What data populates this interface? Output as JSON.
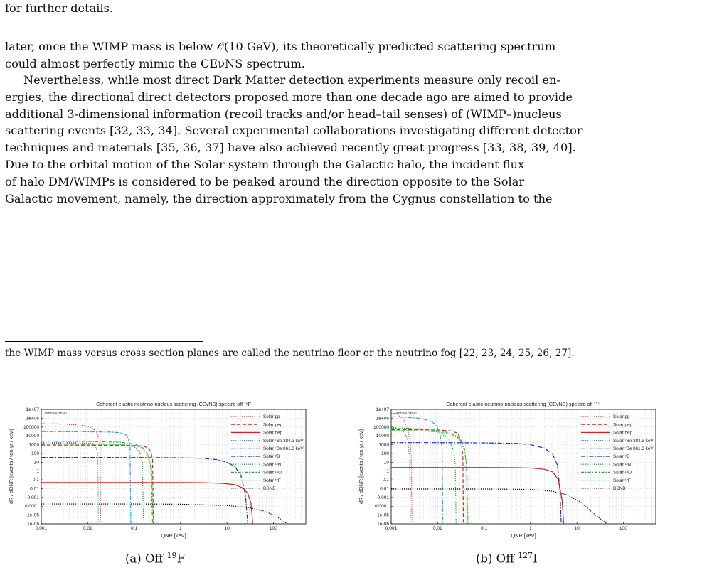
{
  "text": {
    "top_fragment": "for further details.",
    "para1": [
      "later, once the WIMP mass is below 𝒪(10 GeV), its theoretically predicted scattering spectrum",
      "could almost perfectly mimic the CEνNS spectrum."
    ],
    "para2": [
      "Nevertheless, while most direct Dark Matter detection experiments measure only recoil en-",
      "ergies, the directional direct detectors proposed more than one decade ago are aimed to provide",
      "additional 3-dimensional information (recoil tracks and/or head–tail senses) of (WIMP–)nucleus",
      "scattering events [32, 33, 34]. Several experimental collaborations investigating different detector",
      "techniques and materials [35, 36, 37] have also achieved recently great progress [33, 38, 39, 40].",
      "Due to the orbital motion of the Solar system through the Galactic halo, the incident flux",
      "of halo DM/WIMPs is considered to be peaked around the direction opposite to the Solar",
      "Galactic movement, namely, the direction approximately from the Cygnus constellation to the"
    ],
    "footnote": "the WIMP mass versus cross section planes are called the neutrino floor or the neutrino fog [22, 23, 24, 25, 26, 27]."
  },
  "captions": {
    "a_prefix": "(a) Off ",
    "a_sup": "19",
    "a_el": "F",
    "b_prefix": "(b) Off ",
    "b_sup": "127",
    "b_el": "I"
  },
  "legend": [
    {
      "name": "Solar pp",
      "color": "#e8322b",
      "dash": "1.2 1.8"
    },
    {
      "name": "Solar pep",
      "color": "#d81e1e",
      "dash": "5 3"
    },
    {
      "name": "Solar hep",
      "color": "#e01a1a",
      "dash": ""
    },
    {
      "name": "Solar ⁷Be 384.3 keV",
      "color": "#3a8fe0",
      "dash": "1.2 1.8"
    },
    {
      "name": "Solar ⁷Be 861.3 keV",
      "color": "#2ea6e6",
      "dash": "6 2 1.5 2"
    },
    {
      "name": "Solar ⁸B",
      "color": "#1030c8",
      "dash": "6 2 1.5 2"
    },
    {
      "name": "Solar ¹³N",
      "color": "#1a9a2a",
      "dash": "1.2 1.8"
    },
    {
      "name": "Solar ¹⁵O",
      "color": "#2aa83a",
      "dash": "4 2 1.5 2"
    },
    {
      "name": "Solar ¹⁷F",
      "color": "#4cd64c",
      "dash": "5 2 1.5 2 1.5 2"
    },
    {
      "name": "DSNB",
      "color": "#000000",
      "dash": "1.2 1.8"
    }
  ],
  "chart_data": [
    {
      "type": "line",
      "title": "Coherent elastic neutrino-nucleus scattering (CEvNS) spectra off ¹⁹F",
      "tag": "AMIDAS-2D-III",
      "xlabel": "QNR [keV]",
      "ylabel": "dR / dQNR [events / ton-yr / keV]",
      "xscale": "log",
      "yscale": "log",
      "xlim": [
        0.001,
        500
      ],
      "ylim": [
        1e-06,
        10000000.0
      ],
      "xticks": [
        "0.001",
        "0.01",
        "0.1",
        "1",
        "10",
        "100"
      ],
      "yticks": [
        "1e-06",
        "1e-05",
        "0.0001",
        "0.001",
        "0.01",
        "0.1",
        "1",
        "10",
        "100",
        "1000",
        "10000",
        "100000",
        "1e+06",
        "1e+07"
      ],
      "grid": true,
      "legend_position": "top-right",
      "series": [
        {
          "name": "Solar pp",
          "x": [
            0.001,
            0.002,
            0.004,
            0.007,
            0.01,
            0.013,
            0.016,
            0.0185,
            0.019,
            0.0192
          ],
          "y": [
            250000,
            230000,
            200000,
            160000,
            120000,
            70000,
            20000,
            1000,
            1e-06,
            1e-06
          ]
        },
        {
          "name": "Solar pep",
          "x": [
            0.001,
            0.01,
            0.05,
            0.1,
            0.15,
            0.2,
            0.23,
            0.25,
            0.26
          ],
          "y": [
            900,
            880,
            850,
            800,
            700,
            450,
            150,
            20,
            1e-06
          ]
        },
        {
          "name": "Solar hep",
          "x": [
            0.001,
            0.01,
            0.1,
            1,
            3,
            8,
            15,
            22,
            28,
            33,
            36
          ],
          "y": [
            0.05,
            0.05,
            0.05,
            0.05,
            0.047,
            0.04,
            0.028,
            0.012,
            0.003,
            0.0002,
            1e-06
          ]
        },
        {
          "name": "Solar ⁷Be 384.3 keV",
          "x": [
            0.001,
            0.005,
            0.01,
            0.013,
            0.015,
            0.0165,
            0.017
          ],
          "y": [
            1800,
            1700,
            1500,
            1000,
            500,
            100,
            1e-06
          ]
        },
        {
          "name": "Solar ⁷Be 861.3 keV",
          "x": [
            0.001,
            0.01,
            0.03,
            0.05,
            0.065,
            0.075,
            0.082,
            0.085
          ],
          "y": [
            30000,
            29000,
            27000,
            23000,
            15000,
            5000,
            500,
            1e-06
          ]
        },
        {
          "name": "Solar ⁸B",
          "x": [
            0.001,
            0.01,
            0.1,
            1,
            3,
            6,
            10,
            15,
            20,
            25,
            28
          ],
          "y": [
            35,
            35,
            34,
            32,
            28,
            20,
            10,
            3,
            0.3,
            0.002,
            1e-06
          ]
        },
        {
          "name": "Solar ¹³N",
          "x": [
            0.001,
            0.01,
            0.05,
            0.1,
            0.13,
            0.15,
            0.16
          ],
          "y": [
            1500,
            1400,
            1100,
            600,
            150,
            10,
            1e-06
          ]
        },
        {
          "name": "Solar ¹⁵O",
          "x": [
            0.001,
            0.01,
            0.05,
            0.1,
            0.15,
            0.2,
            0.23,
            0.25
          ],
          "y": [
            2500,
            2300,
            1900,
            1200,
            500,
            60,
            2,
            1e-06
          ]
        },
        {
          "name": "Solar ¹⁷F",
          "x": [
            0.001,
            0.01,
            0.05,
            0.1,
            0.15,
            0.2,
            0.24,
            0.26
          ],
          "y": [
            1200,
            1150,
            1000,
            800,
            400,
            60,
            2,
            1e-06
          ]
        },
        {
          "name": "DSNB",
          "x": [
            0.001,
            0.01,
            0.1,
            1,
            10,
            30,
            60,
            100,
            150,
            200
          ],
          "y": [
            0.00018,
            0.00018,
            0.00018,
            0.00017,
            0.00012,
            7e-05,
            3e-05,
            1e-05,
            3e-06,
            1e-06
          ]
        }
      ]
    },
    {
      "type": "line",
      "title": "Coherent elastic neutrino-nucleus scattering (CEvNS) spectra off ¹²⁷I",
      "tag": "AMIDAS-2D-III",
      "xlabel": "QNR [keV]",
      "ylabel": "dR / dQNR [events / ton-yr / keV]",
      "xscale": "log",
      "yscale": "log",
      "xlim": [
        0.001,
        500
      ],
      "ylim": [
        1e-06,
        10000000.0
      ],
      "xticks": [
        "0.001",
        "0.01",
        "0.1",
        "1",
        "10",
        "100"
      ],
      "yticks": [
        "1e-06",
        "1e-05",
        "0.0001",
        "0.001",
        "0.01",
        "0.1",
        "1",
        "10",
        "100",
        "1000",
        "10000",
        "100000",
        "1e+06",
        "1e+07"
      ],
      "grid": true,
      "legend_position": "top-right",
      "series": [
        {
          "name": "Solar pp",
          "x": [
            0.001,
            0.0013,
            0.0016,
            0.0019,
            0.0022,
            0.0025,
            0.0027,
            0.0028
          ],
          "y": [
            4000000,
            3000000,
            1500000,
            500000,
            100000,
            5000,
            50,
            1e-06
          ]
        },
        {
          "name": "Solar pep",
          "x": [
            0.001,
            0.005,
            0.01,
            0.02,
            0.027,
            0.032,
            0.035,
            0.036
          ],
          "y": [
            50000,
            48000,
            45000,
            35000,
            20000,
            3000,
            50,
            1e-06
          ]
        },
        {
          "name": "Solar hep",
          "x": [
            0.001,
            0.01,
            0.1,
            0.5,
            1,
            2,
            3,
            4,
            4.8,
            5.2
          ],
          "y": [
            2.5,
            2.5,
            2.5,
            2.4,
            2.2,
            1.6,
            0.8,
            0.1,
            0.0005,
            1e-06
          ]
        },
        {
          "name": "Solar ⁷Be 384.3 keV",
          "x": [
            0.001,
            0.0015,
            0.002,
            0.0023,
            0.0025,
            0.0026
          ],
          "y": [
            80000,
            60000,
            20000,
            2000,
            20,
            1e-06
          ]
        },
        {
          "name": "Solar ⁷Be 861.3 keV",
          "x": [
            0.001,
            0.002,
            0.004,
            0.007,
            0.009,
            0.011,
            0.0125,
            0.013
          ],
          "y": [
            1500000,
            1300000,
            1000000,
            500000,
            200000,
            30000,
            500,
            1e-06
          ]
        },
        {
          "name": "Solar ⁸B",
          "x": [
            0.001,
            0.01,
            0.1,
            0.5,
            1,
            2,
            3,
            3.8,
            4.3,
            4.6
          ],
          "y": [
            1700,
            1700,
            1600,
            1400,
            1000,
            400,
            80,
            5,
            0.01,
            1e-06
          ]
        },
        {
          "name": "Solar ¹³N",
          "x": [
            0.001,
            0.005,
            0.01,
            0.017,
            0.022,
            0.024,
            0.025
          ],
          "y": [
            90000,
            60000,
            30000,
            5000,
            200,
            5,
            1e-06
          ]
        },
        {
          "name": "Solar ¹⁵O",
          "x": [
            0.001,
            0.005,
            0.01,
            0.02,
            0.03,
            0.038,
            0.042,
            0.044
          ],
          "y": [
            70000,
            55000,
            40000,
            20000,
            5000,
            300,
            5,
            1e-06
          ]
        },
        {
          "name": "Solar ¹⁷F",
          "x": [
            0.001,
            0.005,
            0.01,
            0.02,
            0.03,
            0.038,
            0.043,
            0.045
          ],
          "y": [
            40000,
            35000,
            28000,
            15000,
            4000,
            200,
            3,
            1e-06
          ]
        },
        {
          "name": "DSNB",
          "x": [
            0.001,
            0.01,
            0.1,
            0.5,
            1,
            3,
            6,
            12,
            25,
            45
          ],
          "y": [
            0.009,
            0.009,
            0.009,
            0.0085,
            0.008,
            0.005,
            0.002,
            0.0003,
            1e-05,
            1e-06
          ]
        }
      ]
    }
  ]
}
